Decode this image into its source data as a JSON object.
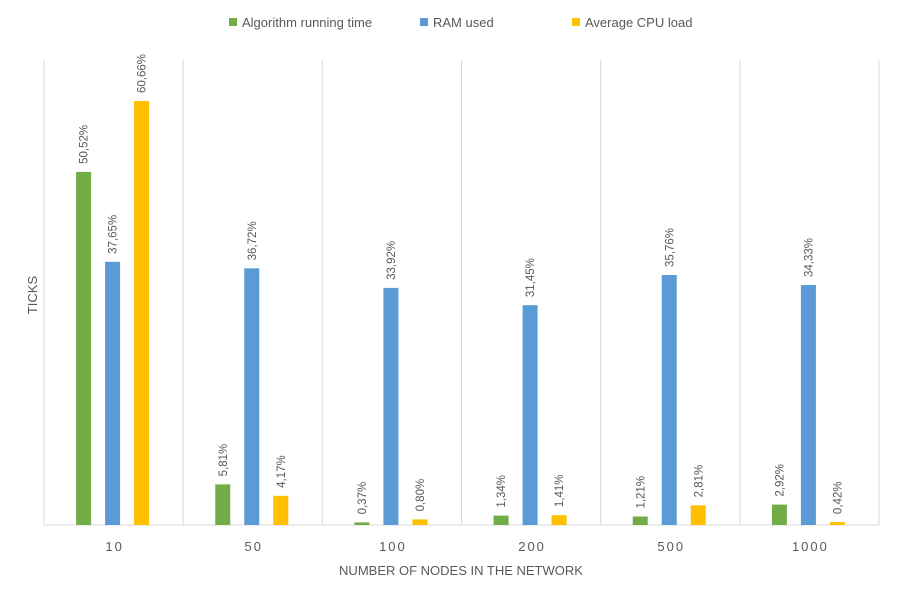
{
  "chart_data": {
    "type": "bar",
    "categories": [
      "10",
      "50",
      "100",
      "200",
      "500",
      "1000"
    ],
    "series": [
      {
        "name": "Algorithm running time",
        "color": "#70ad47",
        "values": [
          50.52,
          5.81,
          0.37,
          1.34,
          1.21,
          2.92
        ],
        "labels": [
          "50,52%",
          "5,81%",
          "0,37%",
          "1,34%",
          "1,21%",
          "2,92%"
        ]
      },
      {
        "name": "RAM used",
        "color": "#5b9bd5",
        "values": [
          37.65,
          36.72,
          33.92,
          31.45,
          35.76,
          34.33
        ],
        "labels": [
          "37,65%",
          "36,72%",
          "33,92%",
          "31,45%",
          "35,76%",
          "34,33%"
        ]
      },
      {
        "name": "Average CPU load",
        "color": "#ffc000",
        "values": [
          60.66,
          4.17,
          0.8,
          1.41,
          2.81,
          0.42
        ],
        "labels": [
          "60,66%",
          "4,17%",
          "0,80%",
          "1,41%",
          "2,81%",
          "0,42%"
        ]
      }
    ],
    "xlabel": "NUMBER OF NODES IN THE NETWORK",
    "ylabel": "TICKS",
    "ylim": [
      0,
      70
    ],
    "grid": "vertical separators between categories",
    "legend_position": "top"
  }
}
